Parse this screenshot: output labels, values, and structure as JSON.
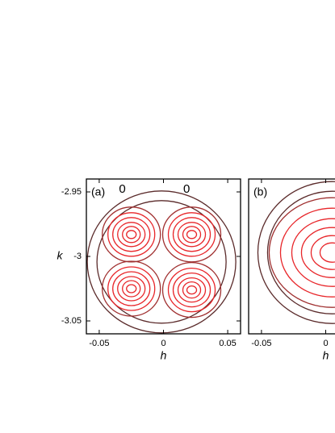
{
  "chart_data": [
    {
      "type": "contour",
      "panel_label": "(a)",
      "x_label": "h",
      "y_label": "k",
      "xlim": [
        -0.06,
        0.06
      ],
      "ylim": [
        -3.06,
        -2.94
      ],
      "xticks": [
        -0.05,
        0,
        0.05
      ],
      "yticks": [
        {
          "value": -2.95,
          "label": "-2.95"
        },
        -3,
        {
          "value": -3.05,
          "label": "-3.05"
        }
      ],
      "peaks": [
        {
          "x": -0.025,
          "y": -2.983
        },
        {
          "x": 0.022,
          "y": -2.983
        },
        {
          "x": -0.025,
          "y": -3.025
        },
        {
          "x": 0.022,
          "y": -3.026
        }
      ],
      "annotations": [
        {
          "text": "0",
          "x": -0.032,
          "y": -2.948
        },
        {
          "text": "0",
          "x": 0.018,
          "y": -2.948
        }
      ],
      "color": "#e8262a",
      "outer_color": "#5b2b2b"
    },
    {
      "type": "contour",
      "panel_label": "(b)",
      "x_label": "h",
      "xlim": [
        -0.06,
        0.06
      ],
      "ylim": [
        -3.06,
        -2.94
      ],
      "xticks": [
        -0.05,
        0
      ],
      "peaks": [
        {
          "x": 0.005,
          "y": -2.997
        }
      ],
      "color": "#e8262a",
      "outer_color": "#5b2b2b"
    }
  ]
}
